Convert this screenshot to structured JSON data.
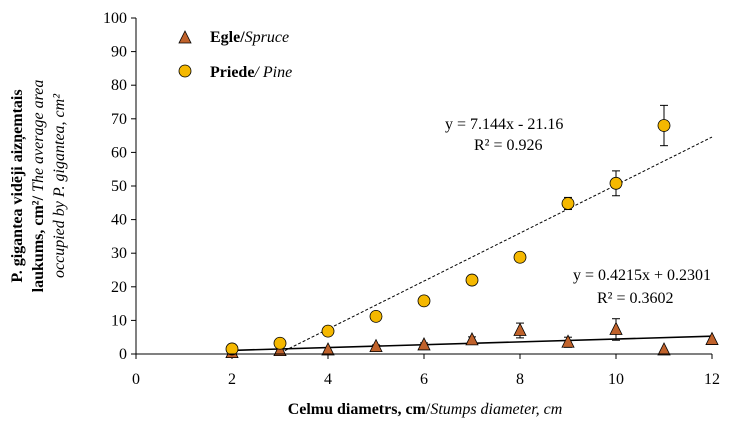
{
  "chart_data": {
    "type": "scatter",
    "xlabel": {
      "bold": "Celmu diametrs, cm",
      "italic": "Stumps diameter, cm"
    },
    "ylabel": {
      "line1": "P. gigantea vidēji aizņemtais",
      "line2_bold": "laukums, cm²/",
      "line2_italic": " The average area",
      "line3_italic": "occupied by P. gigantea, cm²"
    },
    "xlim": [
      0,
      12
    ],
    "ylim": [
      0,
      100
    ],
    "xticks": [
      0,
      2,
      4,
      6,
      8,
      10,
      12
    ],
    "yticks": [
      0,
      10,
      20,
      30,
      40,
      50,
      60,
      70,
      80,
      90,
      100
    ],
    "grid": false,
    "legend_position": "top-left",
    "series": [
      {
        "name_bold": "Egle/",
        "name_italic": "Spruce",
        "marker": "triangle",
        "color": "#c0622b",
        "x": [
          2,
          3,
          4,
          5,
          6,
          7,
          8,
          9,
          10,
          11,
          12
        ],
        "y": [
          0.4,
          1.0,
          1.2,
          2.2,
          2.7,
          4.2,
          7.0,
          3.5,
          7.3,
          1.2,
          4.3
        ],
        "error": [
          0,
          0,
          0,
          0.5,
          0.6,
          0.9,
          2.2,
          1.5,
          3.2,
          0,
          0
        ],
        "trendline": {
          "slope": 0.4215,
          "intercept": 0.2301,
          "x_from": 2,
          "x_to": 12,
          "style": "solid",
          "equation": "y = 0.4215x + 0.2301",
          "r2": "R² = 0.3602"
        }
      },
      {
        "name_bold": "Priede",
        "name_italic": "/ Pine",
        "marker": "circle",
        "color": "#f5b800",
        "x": [
          2,
          3,
          4,
          5,
          6,
          7,
          8,
          9,
          10,
          11
        ],
        "y": [
          1.5,
          3.2,
          6.8,
          11.2,
          15.8,
          22.0,
          28.8,
          44.8,
          50.8,
          68.0
        ],
        "error": [
          0,
          0,
          0,
          0,
          0,
          0,
          0,
          1.8,
          3.7,
          6.0
        ],
        "trendline": {
          "slope": 7.144,
          "intercept": -21.16,
          "x_from": 3.1,
          "x_to": 12,
          "style": "dashed",
          "equation": "y = 7.144x - 21.16",
          "r2": "R² = 0.926"
        }
      }
    ]
  }
}
